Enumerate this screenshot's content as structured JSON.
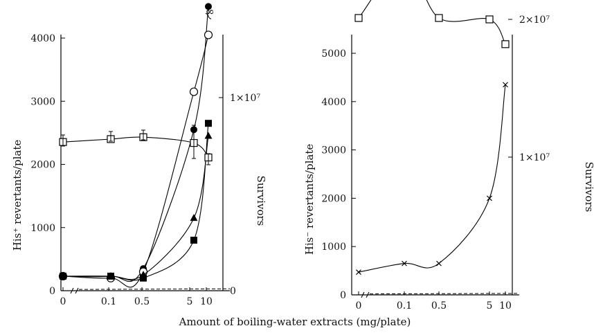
{
  "figure": {
    "xlabel": "Amount of boiling-water extracts (mg/plate)"
  },
  "chart_data": [
    {
      "type": "line",
      "panel": "left",
      "ylabel_left": "His⁺ revertants/plate",
      "ylabel_right": "Survivors",
      "y_left_ticks": [
        "0",
        "1000",
        "2000",
        "3000",
        "4000"
      ],
      "y_right_ticks": [
        "0",
        "1×10⁷"
      ],
      "y_left_range": [
        0,
        4400
      ],
      "y_right_range": [
        0,
        14000000
      ],
      "x_ticks": [
        "0",
        "0.1",
        "0.5",
        "5",
        "10"
      ],
      "x_scale": "log (broken axis at 0)",
      "annotation": "∞",
      "series": [
        {
          "marker": "filled-circle",
          "axis": "left",
          "x": [
            0,
            0.1,
            0.5,
            5,
            10
          ],
          "y": [
            230,
            230,
            350,
            2550,
            4500
          ],
          "last_point_off_scale": true
        },
        {
          "marker": "open-circle",
          "axis": "left",
          "x": [
            0,
            0.1,
            0.5,
            5,
            10
          ],
          "y": [
            230,
            200,
            300,
            3150,
            4050
          ]
        },
        {
          "marker": "filled-triangle",
          "axis": "left",
          "x": [
            0,
            0.1,
            0.5,
            5,
            10
          ],
          "y": [
            230,
            230,
            250,
            1150,
            2450
          ]
        },
        {
          "marker": "filled-square",
          "axis": "left",
          "x": [
            0,
            0.1,
            0.5,
            5,
            10
          ],
          "y": [
            230,
            230,
            200,
            800,
            2650
          ]
        },
        {
          "marker": "open-square",
          "axis": "right",
          "x": [
            0,
            0.1,
            0.5,
            5,
            10
          ],
          "y": [
            7700000,
            7850000,
            7950000,
            7650000,
            6900000
          ]
        },
        {
          "marker": "dashed",
          "axis": "left",
          "x": [
            0,
            10
          ],
          "y": [
            20,
            30
          ]
        }
      ]
    },
    {
      "type": "line",
      "panel": "right",
      "ylabel_left": "His⁻ revertants/plate",
      "ylabel_right": "Survivors",
      "y_left_ticks": [
        "0",
        "1000",
        "2000",
        "3000",
        "4000",
        "5000"
      ],
      "y_right_ticks": [
        "1×10⁷",
        "2×10⁷"
      ],
      "y_left_range": [
        0,
        5500
      ],
      "y_right_range": [
        0,
        27500000
      ],
      "x_ticks": [
        "0",
        "0.1",
        "0.5",
        "5",
        "10"
      ],
      "x_scale": "log (broken axis at 0)",
      "series": [
        {
          "marker": "open-square",
          "axis": "right",
          "x": [
            0,
            0.1,
            0.5,
            5,
            10
          ],
          "y": [
            20100000,
            24000000,
            20100000,
            20000000,
            18200000
          ]
        },
        {
          "marker": "cross",
          "axis": "left",
          "x": [
            0,
            0.1,
            0.5,
            5,
            10
          ],
          "y": [
            470,
            650,
            650,
            2000,
            4350
          ]
        },
        {
          "marker": "dashed",
          "axis": "left",
          "x": [
            0,
            10
          ],
          "y": [
            20,
            30
          ]
        }
      ]
    }
  ]
}
